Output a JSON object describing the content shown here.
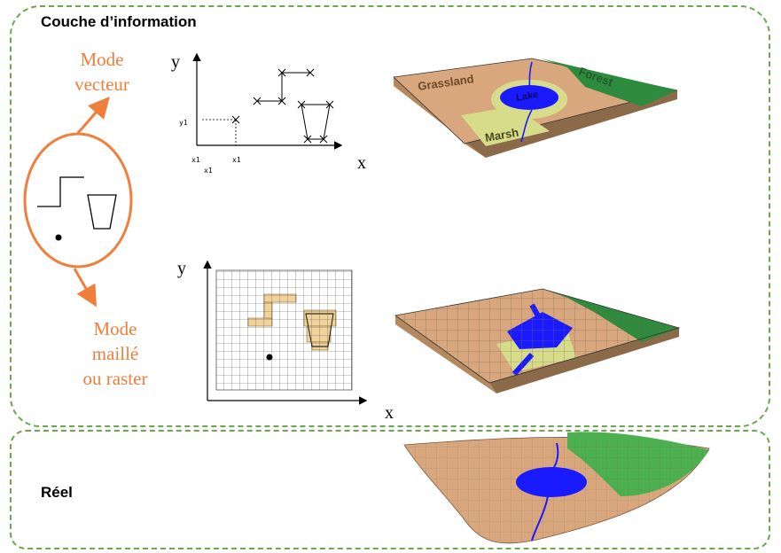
{
  "layers": {
    "top_title": "Couche d’information",
    "bottom_title": "Réel"
  },
  "modes": {
    "vector": [
      "Mode",
      "vecteur"
    ],
    "raster": [
      "Mode",
      "maillé",
      "ou raster"
    ]
  },
  "vector_plot": {
    "axis_y": "y",
    "axis_x": "x",
    "tick_y1": "y1",
    "tick_x1a": "x1",
    "tick_x1b": "x1",
    "tick_x1c": "x1"
  },
  "raster_plot": {
    "axis_y": "y",
    "axis_x": "x"
  },
  "map_labels": {
    "grassland": "Grassland",
    "forest": "Forest",
    "lake": "Lake",
    "marsh": "Marsh"
  },
  "colors": {
    "frame": "#6aa84f",
    "accent": "#f07f3c",
    "land": "#d9a77d",
    "water": "#1a1aff",
    "forest": "#2e8b3e",
    "marsh": "#d7dc8a"
  }
}
